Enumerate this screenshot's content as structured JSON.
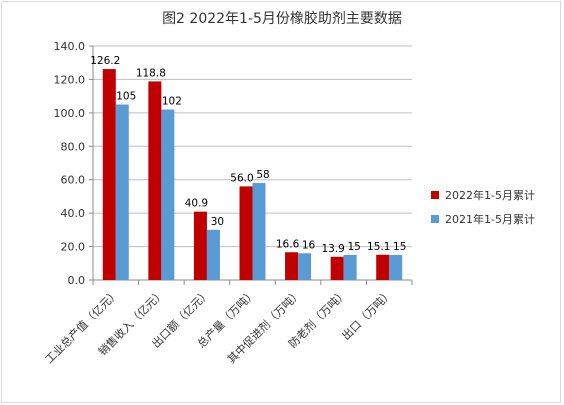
{
  "chart_data": {
    "type": "bar",
    "title": "图2 2022年1-5月份橡胶助剂主要数据",
    "categories": [
      "工业总产值（亿元）",
      "销售收入（亿元）",
      "出口额（亿元）",
      "总产量（万吨）",
      "其中促进剂（万吨）",
      "防老剂（万吨）",
      "出口（万吨）"
    ],
    "series": [
      {
        "name": "2022年1-5月累计",
        "values": [
          126.2,
          118.8,
          40.9,
          56.0,
          16.6,
          13.9,
          15.1
        ],
        "labels": [
          "126.2",
          "118.8",
          "40.9",
          "56.0",
          "16.6",
          "13.9",
          "15.1"
        ],
        "color": "#c00000"
      },
      {
        "name": "2021年1-5月累计",
        "values": [
          105,
          102,
          30,
          58,
          16,
          15,
          15
        ],
        "labels": [
          "105",
          "102",
          "30",
          "58",
          "16",
          "15",
          "15"
        ],
        "color": "#5b9bd5"
      }
    ],
    "ylim": [
      0,
      140
    ],
    "yticks": [
      0,
      20,
      40,
      60,
      80,
      100,
      120,
      140
    ],
    "ytick_labels": [
      "0.0",
      "20.0",
      "40.0",
      "60.0",
      "80.0",
      "100.0",
      "120.0",
      "140.0"
    ],
    "grid": true,
    "legend": "right",
    "gridline_color": "#bfbfbf",
    "axis_color": "#8c8c8c"
  }
}
